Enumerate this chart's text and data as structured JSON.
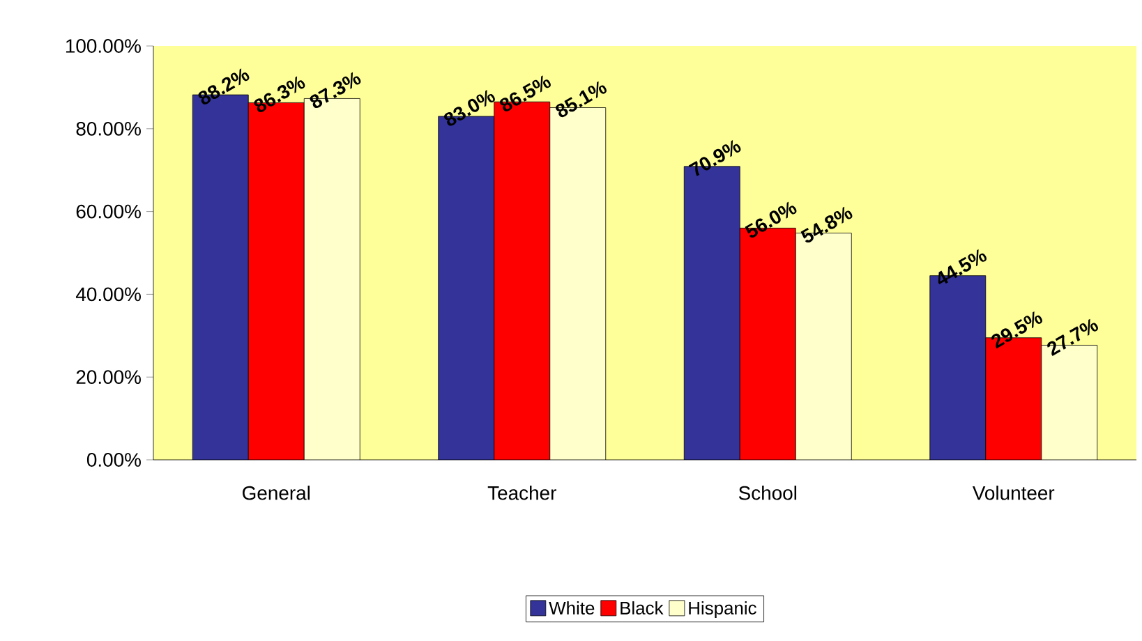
{
  "chart_data": {
    "type": "bar",
    "categories": [
      "General",
      "Teacher",
      "School",
      "Volunteer"
    ],
    "series": [
      {
        "name": "White",
        "color": "#333399",
        "values": [
          88.2,
          83.0,
          70.9,
          44.5
        ],
        "value_labels": [
          "88.2%",
          "83.0%",
          "70.9%",
          "44.5%"
        ]
      },
      {
        "name": "Black",
        "color": "#ff0000",
        "values": [
          86.3,
          86.5,
          56.0,
          29.5
        ],
        "value_labels": [
          "86.3%",
          "86.5%",
          "56.0%",
          "29.5%"
        ]
      },
      {
        "name": "Hispanic",
        "color": "#ffffcc",
        "values": [
          87.3,
          85.1,
          54.8,
          27.7
        ],
        "value_labels": [
          "87.3%",
          "85.1%",
          "54.8%",
          "27.7%"
        ]
      }
    ],
    "ylim": [
      0,
      100
    ],
    "yticks": [
      {
        "value": 0,
        "label": "0.00%"
      },
      {
        "value": 20,
        "label": "20.00%"
      },
      {
        "value": 40,
        "label": "40.00%"
      },
      {
        "value": 60,
        "label": "60.00%"
      },
      {
        "value": 80,
        "label": "80.00%"
      },
      {
        "value": 100,
        "label": "100.00%"
      }
    ],
    "grid": false,
    "legend": "bottom"
  }
}
